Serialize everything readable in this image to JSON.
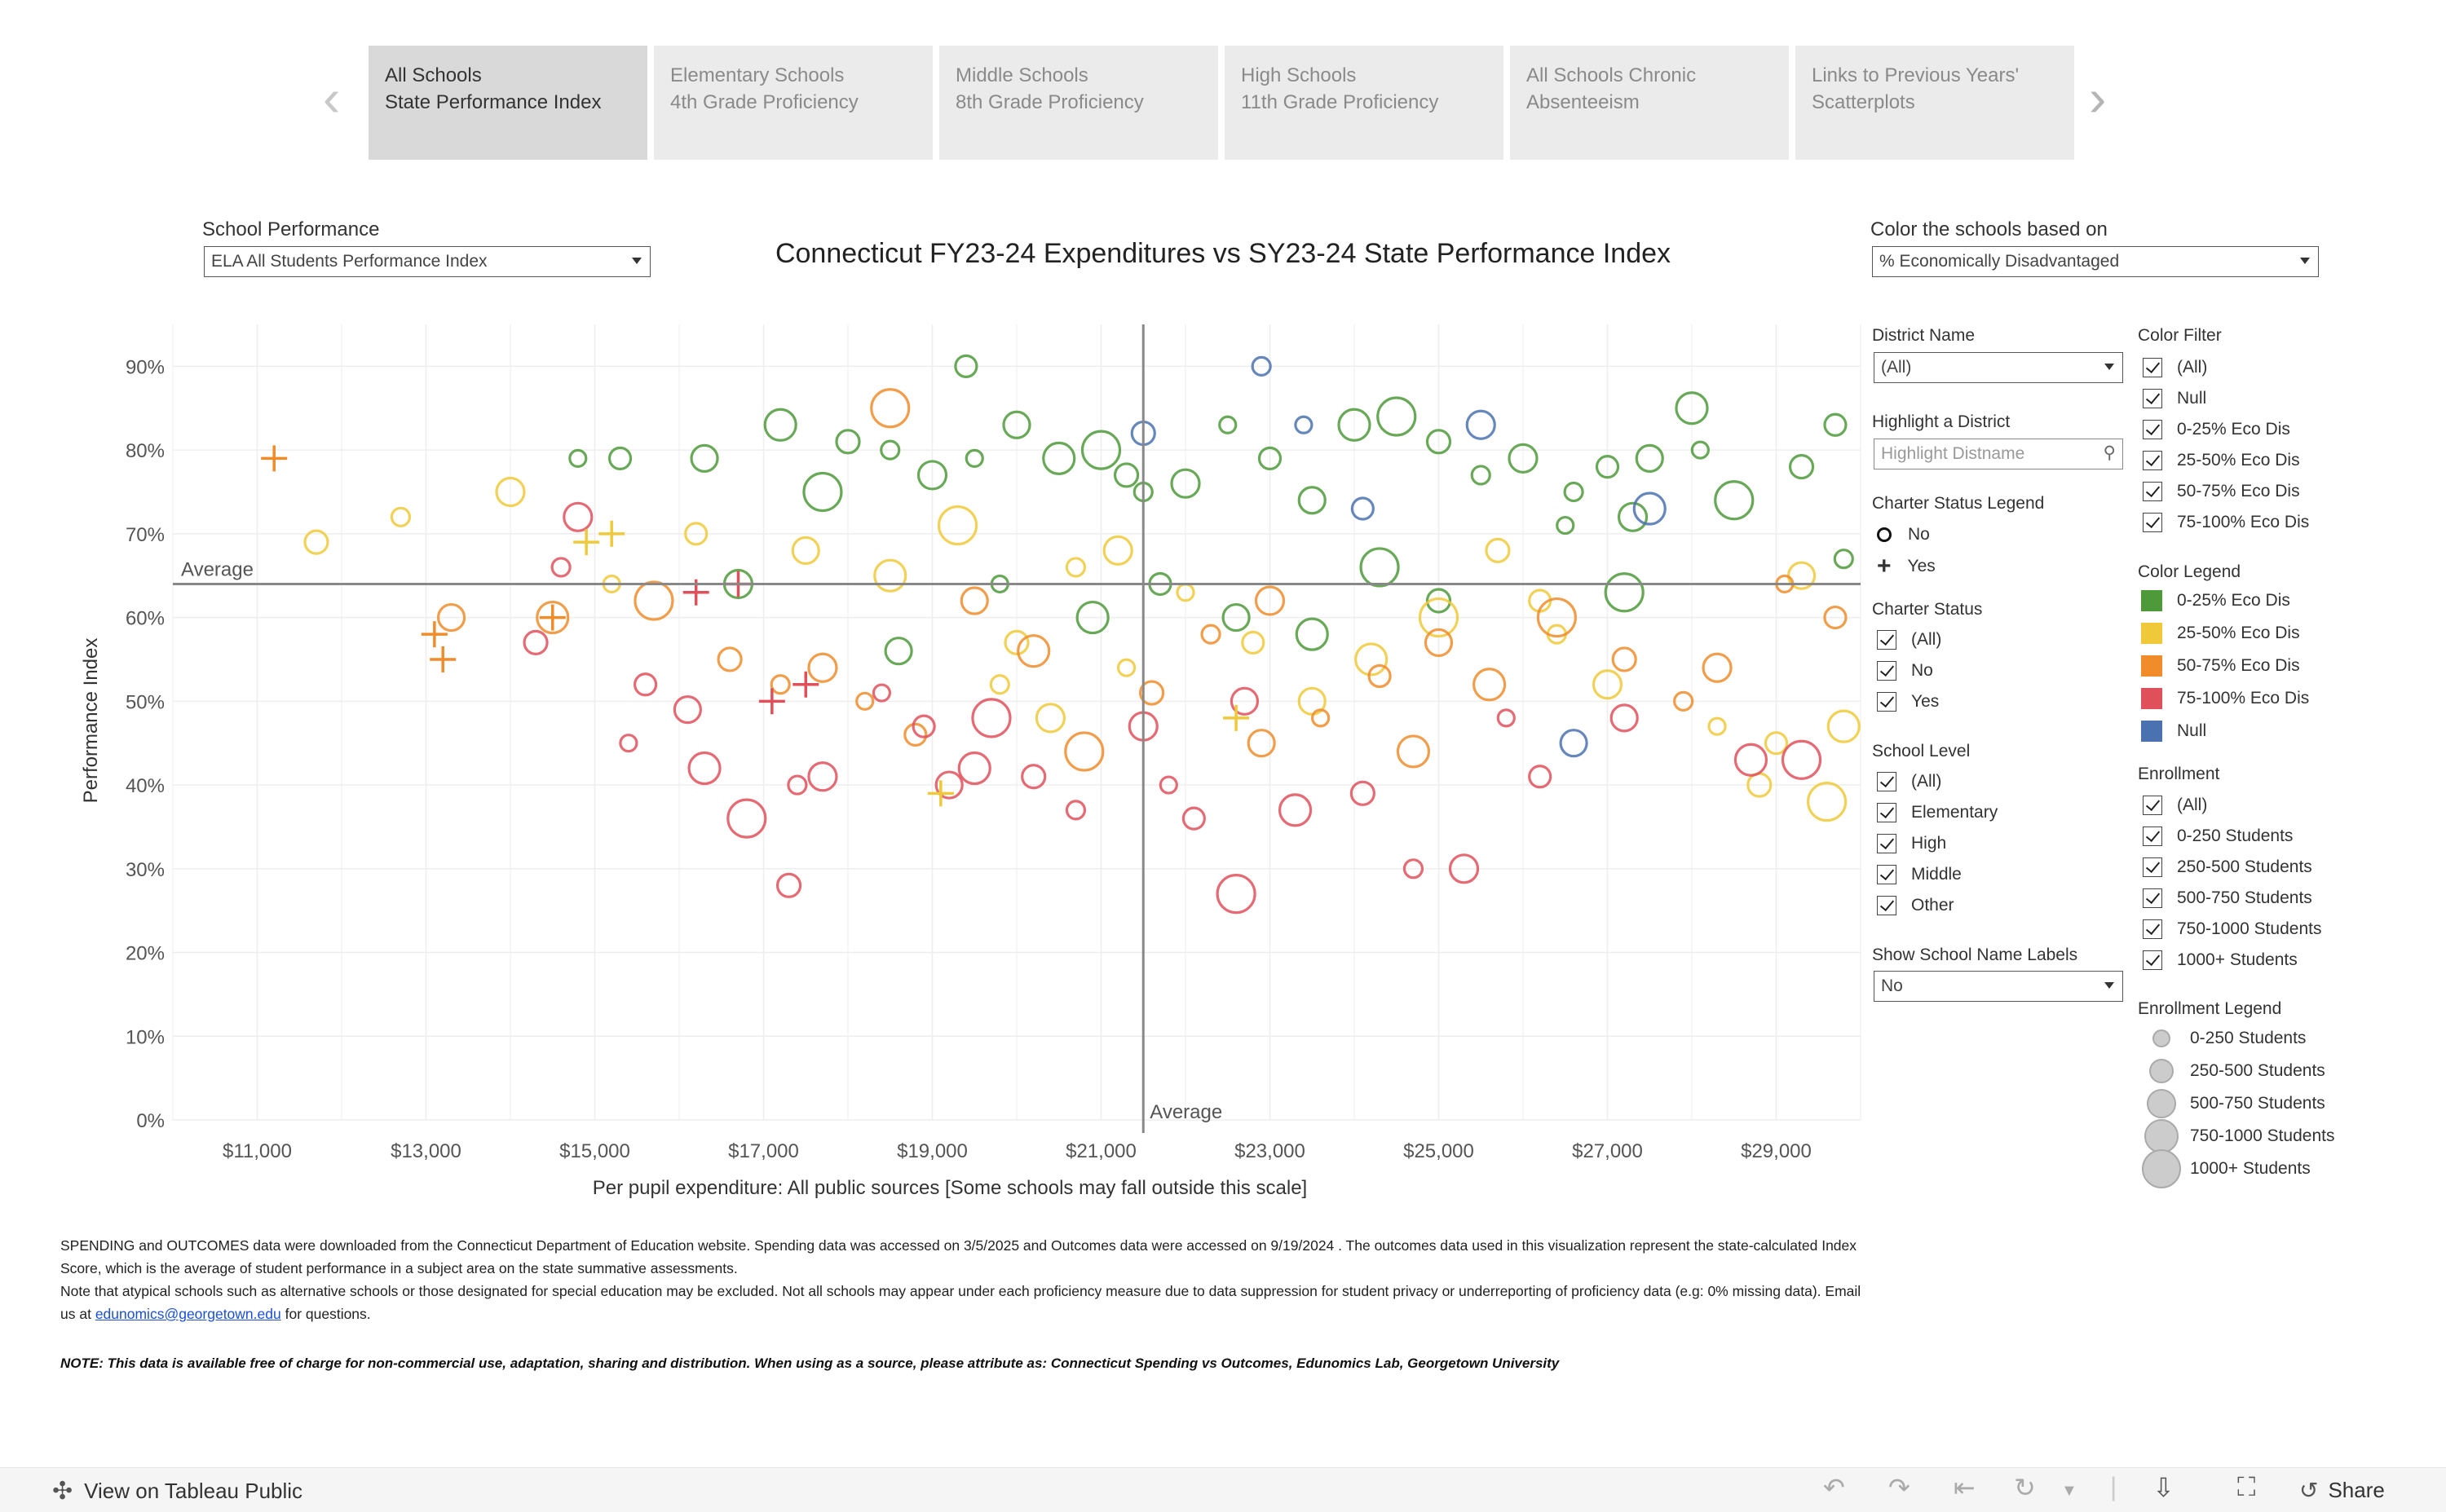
{
  "tabs": [
    {
      "line1": "All Schools",
      "line2": "State Performance Index",
      "active": true
    },
    {
      "line1": "Elementary Schools",
      "line2": "4th Grade Proficiency",
      "active": false
    },
    {
      "line1": "Middle Schools",
      "line2": "8th Grade Proficiency",
      "active": false
    },
    {
      "line1": "High Schools",
      "line2": "11th Grade Proficiency",
      "active": false
    },
    {
      "line1": "All Schools Chronic",
      "line2": "Absenteeism",
      "active": false
    },
    {
      "line1": "Links to Previous Years'",
      "line2": "Scatterplots",
      "active": false
    }
  ],
  "controls": {
    "performance_label": "School Performance",
    "performance_value": "ELA All Students Performance Index",
    "color_label": "Color the schools based on",
    "color_value": "% Economically Disadvantaged"
  },
  "filters": {
    "district_name_label": "District Name",
    "district_name_value": "(All)",
    "highlight_label": "Highlight a District",
    "highlight_placeholder": "Highlight Distname",
    "charter_legend_label": "Charter Status Legend",
    "charter_legend": [
      "No",
      "Yes"
    ],
    "charter_status_label": "Charter Status",
    "charter_status": [
      "(All)",
      "No",
      "Yes"
    ],
    "school_level_label": "School Level",
    "school_level": [
      "(All)",
      "Elementary",
      "High",
      "Middle",
      "Other"
    ],
    "labels_label": "Show School Name Labels",
    "labels_value": "No",
    "color_filter_label": "Color Filter",
    "color_filter": [
      "(All)",
      "Null",
      "0-25% Eco Dis",
      "25-50% Eco Dis",
      "50-75% Eco Dis",
      "75-100% Eco Dis"
    ],
    "color_legend_label": "Color Legend",
    "color_legend": [
      {
        "label": "0-25% Eco Dis",
        "color": "#4e9a3a"
      },
      {
        "label": "25-50% Eco Dis",
        "color": "#f0c93a"
      },
      {
        "label": "50-75% Eco Dis",
        "color": "#f08c2a"
      },
      {
        "label": "75-100% Eco Dis",
        "color": "#e0505a"
      },
      {
        "label": "Null",
        "color": "#4a72b0"
      }
    ],
    "enrollment_label": "Enrollment",
    "enrollment": [
      "(All)",
      "0-250 Students",
      "250-500 Students",
      "500-750 Students",
      "750-1000 Students",
      "1000+ Students"
    ],
    "enrollment_legend_label": "Enrollment Legend",
    "enrollment_legend": [
      "0-250 Students",
      "250-500 Students",
      "500-750 Students",
      "750-1000 Students",
      "1000+ Students"
    ]
  },
  "chart_data": {
    "type": "scatter",
    "title": "Connecticut FY23-24 Expenditures vs SY23-24 State Performance Index",
    "xlabel": "Per pupil expenditure: All public sources [Some schools may fall outside this scale]",
    "ylabel": "Performance Index",
    "xlim": [
      10000,
      30000
    ],
    "ylim": [
      0,
      95
    ],
    "x_ticks": [
      "$11,000",
      "$13,000",
      "$15,000",
      "$17,000",
      "$19,000",
      "$21,000",
      "$23,000",
      "$25,000",
      "$27,000",
      "$29,000"
    ],
    "y_ticks": [
      "0%",
      "10%",
      "20%",
      "30%",
      "40%",
      "50%",
      "60%",
      "70%",
      "80%",
      "90%"
    ],
    "avg_x": 21500,
    "avg_y": 64,
    "avg_label": "Average",
    "marker": "hollow circle (No charter) / plus (charter); size = enrollment",
    "series": [
      {
        "name": "0-25% Eco Dis",
        "color": "#4e9a3a",
        "points": [
          [
            14800,
            79
          ],
          [
            15300,
            79
          ],
          [
            16300,
            79
          ],
          [
            17200,
            83
          ],
          [
            17700,
            75
          ],
          [
            18000,
            81
          ],
          [
            18500,
            80
          ],
          [
            19000,
            77
          ],
          [
            19500,
            79
          ],
          [
            19400,
            90
          ],
          [
            20000,
            83
          ],
          [
            20500,
            79
          ],
          [
            21000,
            80
          ],
          [
            21300,
            77
          ],
          [
            21500,
            75
          ],
          [
            22000,
            76
          ],
          [
            22500,
            83
          ],
          [
            23000,
            79
          ],
          [
            23500,
            74
          ],
          [
            24000,
            83
          ],
          [
            24500,
            84
          ],
          [
            25000,
            81
          ],
          [
            25500,
            77
          ],
          [
            26000,
            79
          ],
          [
            26500,
            71
          ],
          [
            27000,
            78
          ],
          [
            27500,
            79
          ],
          [
            28000,
            85
          ],
          [
            28500,
            74
          ],
          [
            29300,
            78
          ],
          [
            29800,
            67
          ],
          [
            16700,
            64
          ],
          [
            19800,
            64
          ],
          [
            21700,
            64
          ],
          [
            22600,
            60
          ],
          [
            23500,
            58
          ],
          [
            24300,
            66
          ],
          [
            25000,
            62
          ],
          [
            26600,
            75
          ],
          [
            27300,
            72
          ],
          [
            28100,
            80
          ],
          [
            29700,
            83
          ],
          [
            18600,
            56
          ],
          [
            20900,
            60
          ],
          [
            27200,
            63
          ]
        ]
      },
      {
        "name": "25-50% Eco Dis",
        "color": "#f0c93a",
        "points": [
          [
            11700,
            69
          ],
          [
            12700,
            72
          ],
          [
            14000,
            75
          ],
          [
            15200,
            64
          ],
          [
            16200,
            70
          ],
          [
            17500,
            68
          ],
          [
            18500,
            65
          ],
          [
            19300,
            71
          ],
          [
            20000,
            57
          ],
          [
            20700,
            66
          ],
          [
            21200,
            68
          ],
          [
            22000,
            63
          ],
          [
            22800,
            57
          ],
          [
            23500,
            50
          ],
          [
            24200,
            55
          ],
          [
            25000,
            60
          ],
          [
            25700,
            68
          ],
          [
            26400,
            58
          ],
          [
            27000,
            52
          ],
          [
            28300,
            47
          ],
          [
            29000,
            45
          ],
          [
            29300,
            65
          ],
          [
            29800,
            47
          ],
          [
            29600,
            38
          ],
          [
            28800,
            40
          ],
          [
            19800,
            52
          ],
          [
            20400,
            48
          ],
          [
            21300,
            54
          ],
          [
            26200,
            62
          ]
        ]
      },
      {
        "name": "50-75% Eco Dis",
        "color": "#f08c2a",
        "points": [
          [
            13300,
            60
          ],
          [
            14500,
            60
          ],
          [
            15700,
            62
          ],
          [
            16600,
            55
          ],
          [
            17200,
            52
          ],
          [
            17700,
            54
          ],
          [
            18200,
            50
          ],
          [
            18800,
            46
          ],
          [
            19500,
            62
          ],
          [
            20200,
            56
          ],
          [
            20800,
            44
          ],
          [
            21600,
            51
          ],
          [
            22300,
            58
          ],
          [
            23000,
            62
          ],
          [
            23600,
            48
          ],
          [
            24300,
            53
          ],
          [
            25000,
            57
          ],
          [
            25600,
            52
          ],
          [
            26400,
            60
          ],
          [
            27200,
            55
          ],
          [
            27900,
            50
          ],
          [
            28300,
            54
          ],
          [
            29100,
            64
          ],
          [
            29700,
            60
          ],
          [
            22900,
            45
          ],
          [
            24700,
            44
          ],
          [
            18500,
            85
          ]
        ]
      },
      {
        "name": "75-100% Eco Dis",
        "color": "#e0505a",
        "points": [
          [
            14300,
            57
          ],
          [
            14600,
            66
          ],
          [
            14800,
            72
          ],
          [
            15400,
            45
          ],
          [
            15600,
            52
          ],
          [
            16100,
            49
          ],
          [
            16300,
            42
          ],
          [
            16800,
            36
          ],
          [
            17300,
            28
          ],
          [
            17400,
            40
          ],
          [
            17700,
            41
          ],
          [
            18400,
            51
          ],
          [
            18900,
            47
          ],
          [
            19200,
            40
          ],
          [
            19500,
            42
          ],
          [
            19700,
            48
          ],
          [
            20200,
            41
          ],
          [
            20700,
            37
          ],
          [
            21500,
            47
          ],
          [
            21800,
            40
          ],
          [
            22100,
            36
          ],
          [
            22700,
            50
          ],
          [
            23300,
            37
          ],
          [
            22600,
            27
          ],
          [
            24100,
            39
          ],
          [
            24700,
            30
          ],
          [
            25300,
            30
          ],
          [
            25800,
            48
          ],
          [
            26200,
            41
          ],
          [
            27200,
            48
          ],
          [
            28700,
            43
          ],
          [
            29300,
            43
          ]
        ]
      },
      {
        "name": "Null",
        "color": "#4a72b0",
        "points": [
          [
            21500,
            82
          ],
          [
            22900,
            90
          ],
          [
            25500,
            83
          ],
          [
            23400,
            83
          ],
          [
            24100,
            73
          ],
          [
            26600,
            45
          ],
          [
            27500,
            73
          ]
        ]
      }
    ],
    "charter_points": [
      [
        11200,
        79,
        "#f08c2a"
      ],
      [
        13100,
        58,
        "#f08c2a"
      ],
      [
        13200,
        55,
        "#f08c2a"
      ],
      [
        14900,
        69,
        "#f0c93a"
      ],
      [
        15200,
        70,
        "#f0c93a"
      ],
      [
        14500,
        60,
        "#f08c2a"
      ],
      [
        16200,
        63,
        "#e0505a"
      ],
      [
        16700,
        64,
        "#e0505a"
      ],
      [
        17100,
        50,
        "#e0505a"
      ],
      [
        17500,
        52,
        "#e0505a"
      ],
      [
        19100,
        39,
        "#f0c93a"
      ],
      [
        22600,
        48,
        "#f0c93a"
      ]
    ]
  },
  "footer": {
    "para1": "SPENDING and OUTCOMES data were downloaded from the Connecticut Department of Education website. Spending data was accessed on 3/5/2025 and Outcomes data were accessed on 9/19/2024 . The outcomes data used in this visualization represent the state-calculated Index Score, which is the average of student performance in a subject area on the state summative assessments.",
    "para2_a": "Note that atypical schools such as alternative schools or those designated for special education may be excluded. Not all schools may appear under each proficiency measure due to data suppression for student privacy or underreporting of proficiency data (e.g: 0% missing data). Email us at ",
    "email": "edunomics@georgetown.edu",
    "para2_b": " for questions.",
    "note": "NOTE: This data is available free of charge for non-commercial use, adaptation, sharing and distribution. When using as a source, please attribute as: Connecticut Spending vs Outcomes, Edunomics Lab, Georgetown University"
  },
  "bottombar": {
    "view_label": "View on Tableau Public",
    "share_label": "Share"
  }
}
